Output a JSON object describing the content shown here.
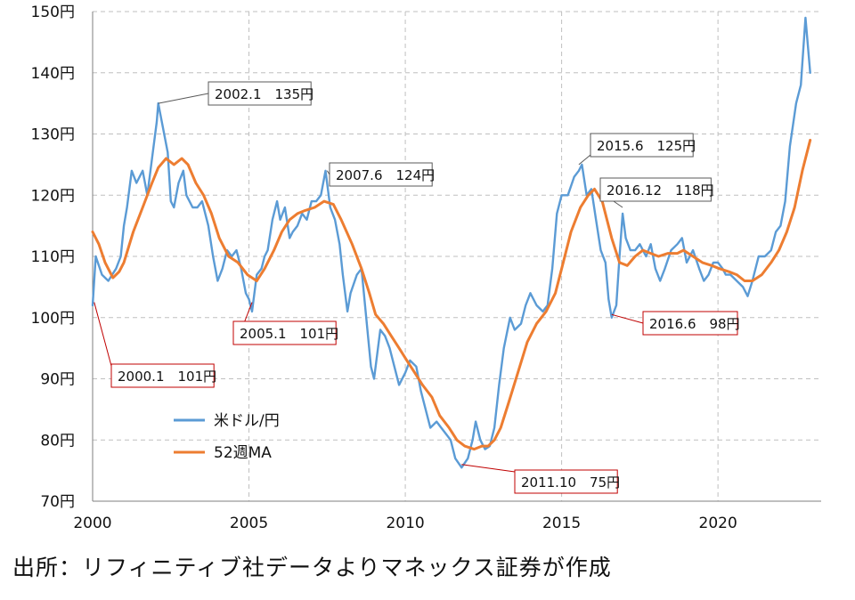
{
  "chart_data": {
    "type": "line",
    "xlim": [
      2000,
      2023.3
    ],
    "ylim": [
      70,
      150
    ],
    "y_ticks": [
      {
        "v": 150,
        "label": "150円"
      },
      {
        "v": 140,
        "label": "140円"
      },
      {
        "v": 130,
        "label": "130円"
      },
      {
        "v": 120,
        "label": "120円"
      },
      {
        "v": 110,
        "label": "110円"
      },
      {
        "v": 100,
        "label": "100円"
      },
      {
        "v": 90,
        "label": "90円"
      },
      {
        "v": 80,
        "label": "80円"
      },
      {
        "v": 70,
        "label": "70円"
      }
    ],
    "x_ticks": [
      {
        "v": 2000,
        "label": "2000"
      },
      {
        "v": 2005,
        "label": "2005"
      },
      {
        "v": 2010,
        "label": "2010"
      },
      {
        "v": 2015,
        "label": "2015"
      },
      {
        "v": 2020,
        "label": "2020"
      }
    ],
    "grid": true,
    "legend_position": "bottom-left",
    "series": [
      {
        "name": "米ドル/円",
        "color": "#5B9BD5",
        "points": [
          [
            2000.0,
            102
          ],
          [
            2000.1,
            110
          ],
          [
            2000.3,
            107
          ],
          [
            2000.5,
            106
          ],
          [
            2000.75,
            108
          ],
          [
            2000.9,
            110
          ],
          [
            2001.0,
            115
          ],
          [
            2001.1,
            118
          ],
          [
            2001.25,
            124
          ],
          [
            2001.4,
            122
          ],
          [
            2001.6,
            124
          ],
          [
            2001.75,
            120
          ],
          [
            2001.9,
            126
          ],
          [
            2002.05,
            132
          ],
          [
            2002.1,
            135
          ],
          [
            2002.25,
            131
          ],
          [
            2002.4,
            127
          ],
          [
            2002.5,
            119
          ],
          [
            2002.6,
            118
          ],
          [
            2002.75,
            122
          ],
          [
            2002.9,
            124
          ],
          [
            2003.0,
            120
          ],
          [
            2003.2,
            118
          ],
          [
            2003.35,
            118
          ],
          [
            2003.5,
            119
          ],
          [
            2003.7,
            115
          ],
          [
            2003.85,
            110
          ],
          [
            2004.0,
            106
          ],
          [
            2004.15,
            108
          ],
          [
            2004.3,
            111
          ],
          [
            2004.45,
            110
          ],
          [
            2004.6,
            111
          ],
          [
            2004.75,
            108
          ],
          [
            2004.9,
            104
          ],
          [
            2005.0,
            103
          ],
          [
            2005.1,
            101
          ],
          [
            2005.25,
            107
          ],
          [
            2005.4,
            108
          ],
          [
            2005.5,
            110
          ],
          [
            2005.6,
            111
          ],
          [
            2005.75,
            116
          ],
          [
            2005.9,
            119
          ],
          [
            2006.0,
            116
          ],
          [
            2006.15,
            118
          ],
          [
            2006.3,
            113
          ],
          [
            2006.4,
            114
          ],
          [
            2006.55,
            115
          ],
          [
            2006.7,
            117
          ],
          [
            2006.85,
            116
          ],
          [
            2007.0,
            119
          ],
          [
            2007.15,
            119
          ],
          [
            2007.3,
            120
          ],
          [
            2007.45,
            124
          ],
          [
            2007.6,
            118
          ],
          [
            2007.75,
            116
          ],
          [
            2007.9,
            112
          ],
          [
            2008.0,
            107
          ],
          [
            2008.15,
            101
          ],
          [
            2008.25,
            104
          ],
          [
            2008.45,
            107
          ],
          [
            2008.6,
            108
          ],
          [
            2008.75,
            100
          ],
          [
            2008.9,
            92
          ],
          [
            2009.0,
            90
          ],
          [
            2009.2,
            98
          ],
          [
            2009.35,
            97
          ],
          [
            2009.5,
            95
          ],
          [
            2009.65,
            92
          ],
          [
            2009.8,
            89
          ],
          [
            2010.0,
            91
          ],
          [
            2010.15,
            93
          ],
          [
            2010.35,
            92
          ],
          [
            2010.5,
            88
          ],
          [
            2010.65,
            85
          ],
          [
            2010.8,
            82
          ],
          [
            2011.0,
            83
          ],
          [
            2011.15,
            82
          ],
          [
            2011.3,
            81
          ],
          [
            2011.45,
            80
          ],
          [
            2011.6,
            77
          ],
          [
            2011.8,
            75.5
          ],
          [
            2012.0,
            77
          ],
          [
            2012.15,
            80
          ],
          [
            2012.25,
            83
          ],
          [
            2012.4,
            80
          ],
          [
            2012.55,
            78.5
          ],
          [
            2012.7,
            79
          ],
          [
            2012.85,
            82
          ],
          [
            2013.0,
            89
          ],
          [
            2013.15,
            95
          ],
          [
            2013.35,
            100
          ],
          [
            2013.5,
            98
          ],
          [
            2013.7,
            99
          ],
          [
            2013.85,
            102
          ],
          [
            2014.0,
            104
          ],
          [
            2014.2,
            102
          ],
          [
            2014.4,
            101
          ],
          [
            2014.55,
            102
          ],
          [
            2014.7,
            108
          ],
          [
            2014.85,
            117
          ],
          [
            2015.0,
            120
          ],
          [
            2015.2,
            120
          ],
          [
            2015.4,
            123
          ],
          [
            2015.55,
            124
          ],
          [
            2015.65,
            125
          ],
          [
            2015.8,
            120
          ],
          [
            2015.95,
            121
          ],
          [
            2016.1,
            116
          ],
          [
            2016.25,
            111
          ],
          [
            2016.4,
            109
          ],
          [
            2016.5,
            103
          ],
          [
            2016.6,
            100
          ],
          [
            2016.75,
            102
          ],
          [
            2016.85,
            110
          ],
          [
            2016.95,
            117
          ],
          [
            2017.05,
            113
          ],
          [
            2017.2,
            111
          ],
          [
            2017.35,
            111
          ],
          [
            2017.5,
            112
          ],
          [
            2017.7,
            110
          ],
          [
            2017.85,
            112
          ],
          [
            2018.0,
            108
          ],
          [
            2018.15,
            106
          ],
          [
            2018.3,
            108
          ],
          [
            2018.5,
            111
          ],
          [
            2018.7,
            112
          ],
          [
            2018.85,
            113
          ],
          [
            2019.0,
            109
          ],
          [
            2019.2,
            111
          ],
          [
            2019.4,
            108
          ],
          [
            2019.55,
            106
          ],
          [
            2019.7,
            107
          ],
          [
            2019.85,
            109
          ],
          [
            2020.0,
            109
          ],
          [
            2020.15,
            108
          ],
          [
            2020.25,
            107
          ],
          [
            2020.4,
            107
          ],
          [
            2020.6,
            106
          ],
          [
            2020.8,
            105
          ],
          [
            2020.95,
            103.5
          ],
          [
            2021.1,
            106
          ],
          [
            2021.3,
            110
          ],
          [
            2021.5,
            110
          ],
          [
            2021.7,
            111
          ],
          [
            2021.85,
            114
          ],
          [
            2022.0,
            115
          ],
          [
            2022.15,
            119
          ],
          [
            2022.3,
            128
          ],
          [
            2022.5,
            135
          ],
          [
            2022.65,
            138
          ],
          [
            2022.8,
            149
          ],
          [
            2022.95,
            140
          ]
        ]
      },
      {
        "name": "52週MA",
        "color": "#ED7D31",
        "points": [
          [
            2000.0,
            114
          ],
          [
            2000.2,
            112
          ],
          [
            2000.4,
            109
          ],
          [
            2000.65,
            106.5
          ],
          [
            2000.85,
            107.5
          ],
          [
            2001.0,
            109
          ],
          [
            2001.3,
            114
          ],
          [
            2001.6,
            118
          ],
          [
            2001.9,
            122
          ],
          [
            2002.1,
            124.5
          ],
          [
            2002.35,
            126
          ],
          [
            2002.6,
            125
          ],
          [
            2002.85,
            126
          ],
          [
            2003.05,
            125
          ],
          [
            2003.3,
            122
          ],
          [
            2003.55,
            120
          ],
          [
            2003.8,
            117
          ],
          [
            2004.05,
            113
          ],
          [
            2004.35,
            110
          ],
          [
            2004.65,
            109
          ],
          [
            2004.95,
            107
          ],
          [
            2005.25,
            106
          ],
          [
            2005.5,
            108
          ],
          [
            2005.8,
            111
          ],
          [
            2006.05,
            114
          ],
          [
            2006.3,
            116
          ],
          [
            2006.55,
            117
          ],
          [
            2006.8,
            117.5
          ],
          [
            2007.1,
            118
          ],
          [
            2007.4,
            119
          ],
          [
            2007.7,
            118.5
          ],
          [
            2007.95,
            116
          ],
          [
            2008.3,
            112
          ],
          [
            2008.6,
            108
          ],
          [
            2008.85,
            104
          ],
          [
            2009.05,
            100.5
          ],
          [
            2009.3,
            99
          ],
          [
            2009.55,
            97
          ],
          [
            2009.8,
            95
          ],
          [
            2010.05,
            93
          ],
          [
            2010.3,
            91
          ],
          [
            2010.55,
            89
          ],
          [
            2010.85,
            87
          ],
          [
            2011.1,
            84
          ],
          [
            2011.4,
            82
          ],
          [
            2011.65,
            80
          ],
          [
            2011.9,
            79
          ],
          [
            2012.2,
            78.5
          ],
          [
            2012.45,
            79
          ],
          [
            2012.65,
            79
          ],
          [
            2012.85,
            80
          ],
          [
            2013.05,
            82
          ],
          [
            2013.3,
            86
          ],
          [
            2013.6,
            91
          ],
          [
            2013.9,
            96
          ],
          [
            2014.2,
            99
          ],
          [
            2014.5,
            101
          ],
          [
            2014.8,
            104
          ],
          [
            2015.05,
            109
          ],
          [
            2015.3,
            114
          ],
          [
            2015.6,
            118
          ],
          [
            2015.85,
            120
          ],
          [
            2016.05,
            121
          ],
          [
            2016.3,
            119
          ],
          [
            2016.6,
            113
          ],
          [
            2016.85,
            109
          ],
          [
            2017.1,
            108.5
          ],
          [
            2017.35,
            110
          ],
          [
            2017.6,
            111
          ],
          [
            2017.85,
            110.5
          ],
          [
            2018.1,
            110
          ],
          [
            2018.4,
            110.5
          ],
          [
            2018.7,
            110.5
          ],
          [
            2018.9,
            111
          ],
          [
            2019.2,
            110
          ],
          [
            2019.5,
            109
          ],
          [
            2019.8,
            108.5
          ],
          [
            2020.05,
            108
          ],
          [
            2020.35,
            107.5
          ],
          [
            2020.6,
            107
          ],
          [
            2020.85,
            106
          ],
          [
            2021.1,
            106
          ],
          [
            2021.4,
            107
          ],
          [
            2021.7,
            109
          ],
          [
            2021.95,
            111
          ],
          [
            2022.2,
            114
          ],
          [
            2022.45,
            118
          ],
          [
            2022.7,
            124
          ],
          [
            2022.95,
            129
          ]
        ]
      }
    ],
    "annotations": [
      {
        "text": "2002.1　135円",
        "x": 2002.1,
        "y": 135,
        "border": "#595959"
      },
      {
        "text": "2007.6　124円",
        "x": 2007.5,
        "y": 124,
        "border": "#595959"
      },
      {
        "text": "2015.6　125円",
        "x": 2015.55,
        "y": 125,
        "border": "#595959"
      },
      {
        "text": "2016.12　118円",
        "x": 2016.95,
        "y": 118,
        "border": "#595959"
      },
      {
        "text": "2005.1　101円",
        "x": 2005.1,
        "y": 102.5,
        "border": "#C00000"
      },
      {
        "text": "2000.1　101円",
        "x": 2000.05,
        "y": 102.5,
        "border": "#C00000"
      },
      {
        "text": "2016.6　98円",
        "x": 2016.6,
        "y": 100.5,
        "border": "#C00000"
      },
      {
        "text": "2011.10　75円",
        "x": 2011.8,
        "y": 76,
        "border": "#C00000"
      }
    ]
  },
  "source_note": "出所：リフィニティブ社データよりマネックス証券が作成"
}
